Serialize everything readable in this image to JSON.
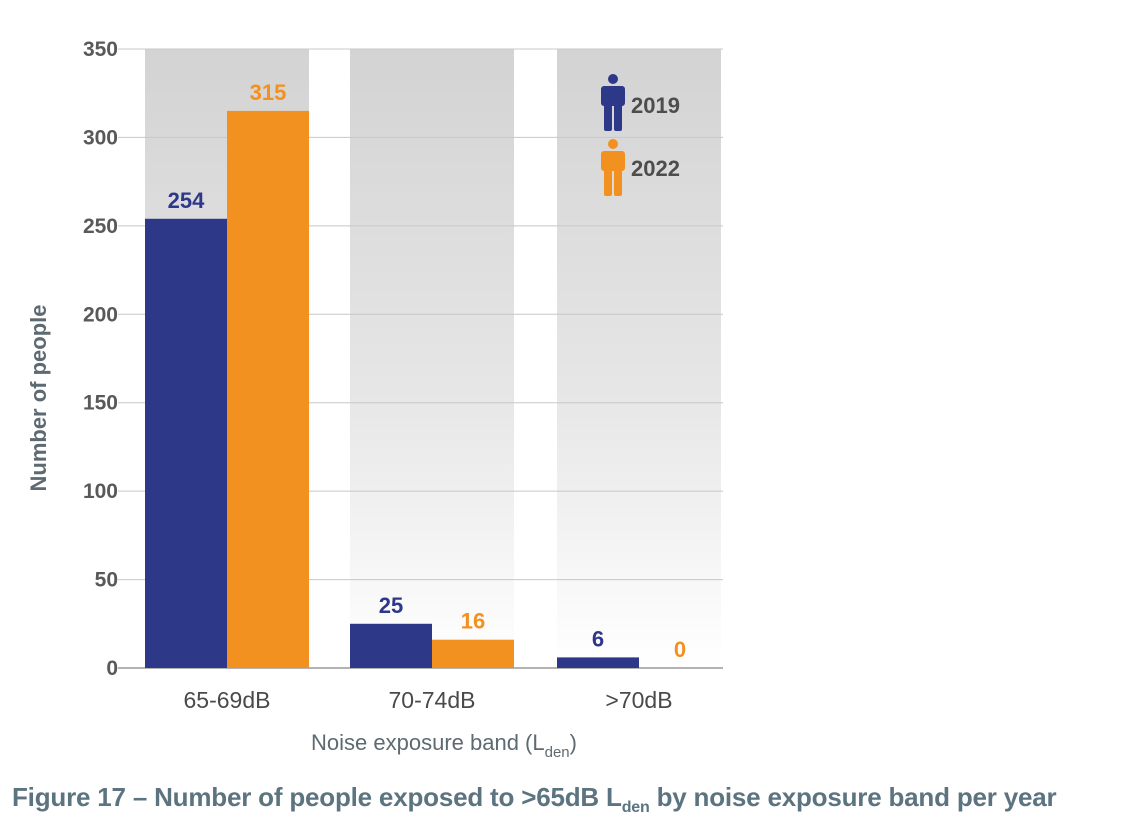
{
  "colors": {
    "series_2019": "#2e3888",
    "series_2022": "#f39120",
    "band_grey": "#d3d3d3",
    "grid": "#c8c8c8",
    "caption": "#5c7480"
  },
  "legend": {
    "icon": "person-icon"
  },
  "chart_data": {
    "type": "bar",
    "categories": [
      "65-69dB",
      "70-74dB",
      ">70dB"
    ],
    "series": [
      {
        "name": "2019",
        "values": [
          254,
          25,
          6
        ]
      },
      {
        "name": "2022",
        "values": [
          315,
          16,
          0
        ]
      }
    ],
    "xlabel": {
      "main": "Noise exposure band (L",
      "sub": "den",
      "end": ")"
    },
    "ylabel": "Number of people",
    "ylim": [
      0,
      350
    ],
    "yticks": [
      "0",
      "50",
      "100",
      "150",
      "200",
      "250",
      "300",
      "350"
    ],
    "grid": true,
    "legend_position": "top-right",
    "data_labels": [
      [
        "254",
        "315"
      ],
      [
        "25",
        "16"
      ],
      [
        "6",
        "0"
      ]
    ]
  },
  "caption": {
    "prefix": "Figure 17 – Number of people exposed to >65dB L",
    "sub": "den",
    "suffix": " by noise exposure band per year"
  }
}
